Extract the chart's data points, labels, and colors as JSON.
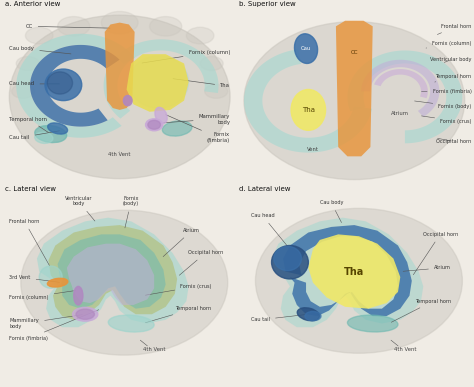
{
  "panels": [
    "a. Anterior view",
    "b. Superior view",
    "c. Lateral view",
    "d. Lateral view"
  ],
  "bg_color": "#f0ece5",
  "brain_color": "#dcd8d0",
  "colors": {
    "blue": "#3a6fa8",
    "blue_dark": "#2a5080",
    "teal": "#6db8b0",
    "teal_light": "#9ed4cc",
    "teal_outer": "#a8d8d0",
    "yellow": "#e8dc50",
    "yellow_light": "#f0e868",
    "orange": "#e8943a",
    "purple": "#b088c0",
    "purple_light": "#c8a8d8",
    "olive": "#b0bc70",
    "lavender": "#c0b0d8",
    "gray_brain": "#c8c4bc"
  },
  "divider_color": "#cccccc"
}
